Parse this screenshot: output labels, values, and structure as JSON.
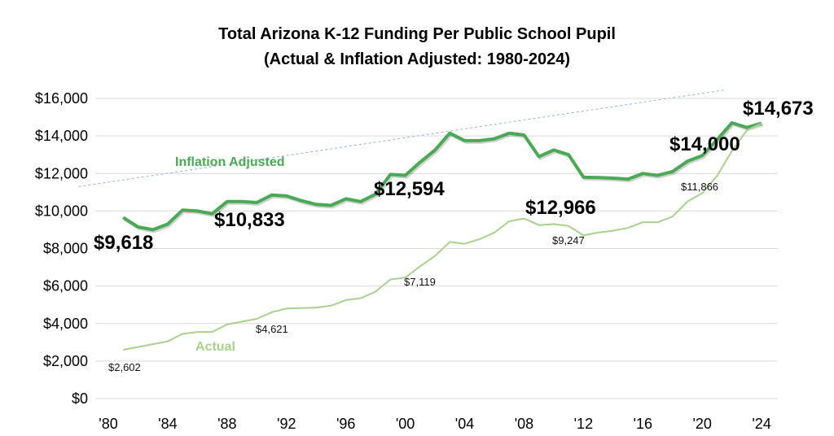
{
  "chart_data": {
    "type": "line",
    "title": "Total Arizona K-12 Funding Per Public School Pupil",
    "subtitle": "(Actual & Inflation Adjusted: 1980-2024)",
    "xlabel": "",
    "ylabel": "",
    "xlim": [
      1980,
      2024
    ],
    "ylim": [
      0,
      16000
    ],
    "grid": true,
    "y_ticks": [
      "$0",
      "$2,000",
      "$4,000",
      "$6,000",
      "$8,000",
      "$10,000",
      "$12,000",
      "$14,000",
      "$16,000"
    ],
    "x_ticks": [
      "'80",
      "'84",
      "'88",
      "'92",
      "'96",
      "'00",
      "'04",
      "'08",
      "'12",
      "'16",
      "'20",
      "'24"
    ],
    "x": [
      1981,
      1982,
      1983,
      1984,
      1985,
      1986,
      1987,
      1988,
      1989,
      1990,
      1991,
      1992,
      1993,
      1994,
      1995,
      1996,
      1997,
      1998,
      1999,
      2000,
      2001,
      2002,
      2003,
      2004,
      2005,
      2006,
      2007,
      2008,
      2009,
      2010,
      2011,
      2012,
      2013,
      2014,
      2015,
      2016,
      2017,
      2018,
      2019,
      2020,
      2021,
      2022,
      2023,
      2024
    ],
    "series": [
      {
        "name": "Inflation Adjusted",
        "color": "#4aa954",
        "values": [
          9650,
          9150,
          9000,
          9300,
          10050,
          10000,
          9850,
          10500,
          10500,
          10450,
          10850,
          10800,
          10550,
          10350,
          10300,
          10650,
          10500,
          10900,
          11950,
          11900,
          12600,
          13250,
          14150,
          13750,
          13750,
          13850,
          14150,
          14050,
          12900,
          13250,
          13000,
          11800,
          11780,
          11750,
          11700,
          12000,
          11900,
          12100,
          12650,
          12950,
          13800,
          14700,
          14450,
          14673
        ]
      },
      {
        "name": "Actual",
        "color": "#a9d18e",
        "values": [
          2602,
          2750,
          2900,
          3050,
          3450,
          3550,
          3550,
          3950,
          4100,
          4250,
          4600,
          4800,
          4820,
          4850,
          4950,
          5250,
          5350,
          5700,
          6350,
          6450,
          7050,
          7600,
          8350,
          8250,
          8500,
          8850,
          9450,
          9600,
          9250,
          9300,
          9200,
          8700,
          8850,
          8950,
          9100,
          9400,
          9400,
          9700,
          10500,
          10950,
          11866,
          13200,
          14300,
          14673
        ]
      }
    ],
    "trendline": {
      "style": "dotted",
      "color": "#8fb4e3",
      "x": [
        1978,
        2021.5
      ],
      "y": [
        11300,
        16450
      ]
    },
    "annotations_inflation": [
      "$9,618",
      "$10,833",
      "$12,594",
      "$12,966",
      "$14,000",
      "$14,673"
    ],
    "annotations_actual": [
      "$2,602",
      "$4,621",
      "$7,119",
      "$9,247",
      "$11,866"
    ]
  }
}
